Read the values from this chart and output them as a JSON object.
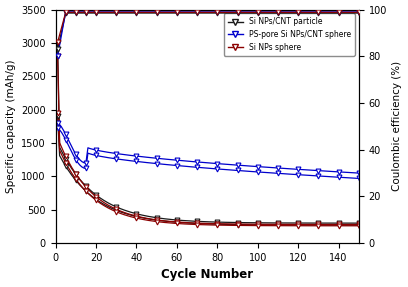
{
  "xlabel": "Cycle Number",
  "ylabel_left": "Specific capacity (mAh/g)",
  "ylabel_right": "Coulombic efficiency (%)",
  "xlim": [
    0,
    150
  ],
  "ylim_left": [
    0,
    3500
  ],
  "ylim_right": [
    0,
    100
  ],
  "yticks_left": [
    0,
    500,
    1000,
    1500,
    2000,
    2500,
    3000,
    3500
  ],
  "yticks_right": [
    0,
    20,
    40,
    60,
    80,
    100
  ],
  "xticks": [
    0,
    20,
    40,
    60,
    80,
    100,
    120,
    140
  ],
  "colors": {
    "black": "#1a1a1a",
    "blue": "#0000cc",
    "red": "#8b0000"
  },
  "legend": [
    "Si NPs/CNT particle",
    "PS-pore Si NPs/CNT sphere",
    "Si NPs sphere"
  ],
  "marker_every": [
    1,
    5,
    10,
    15,
    20,
    30,
    40,
    50,
    60,
    70,
    80,
    90,
    100,
    110,
    120,
    130,
    140,
    150
  ]
}
